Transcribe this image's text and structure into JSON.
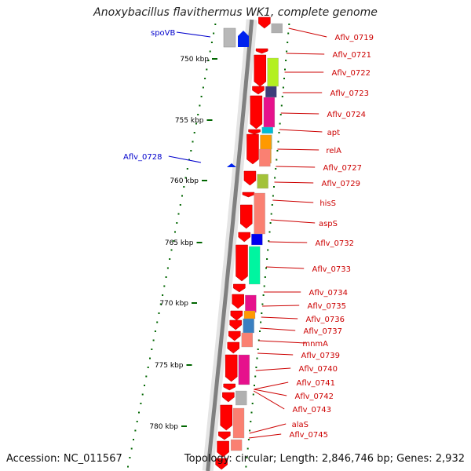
{
  "title": "Anoxybacillus flavithermus WK1, complete genome",
  "accession": "Accession: NC_011567",
  "topology": "Topology: circular; Length: 2,846,746 bp; Genes: 2,932",
  "colors": {
    "forward_label": "#cc0000",
    "reverse_label": "#0000cc",
    "backbone": "#808080",
    "tick": "#006600",
    "kbp_label": "#000000"
  },
  "scale_labels": [
    "750 kbp",
    "755 kbp",
    "760 kbp",
    "765 kbp",
    "770 kbp",
    "775 kbp",
    "780 kbp"
  ],
  "reverse_genes": [
    {
      "name": "spoVB"
    },
    {
      "name": "Aflv_0728"
    }
  ],
  "forward_genes": [
    {
      "name": "Aflv_0719"
    },
    {
      "name": "Aflv_0721"
    },
    {
      "name": "Aflv_0722"
    },
    {
      "name": "Aflv_0723"
    },
    {
      "name": "Aflv_0724"
    },
    {
      "name": "apt"
    },
    {
      "name": "relA"
    },
    {
      "name": "Aflv_0727"
    },
    {
      "name": "Aflv_0729"
    },
    {
      "name": "hisS"
    },
    {
      "name": "aspS"
    },
    {
      "name": "Aflv_0732"
    },
    {
      "name": "Aflv_0733"
    },
    {
      "name": "Aflv_0734"
    },
    {
      "name": "Aflv_0735"
    },
    {
      "name": "Aflv_0736"
    },
    {
      "name": "Aflv_0737"
    },
    {
      "name": "mnmA"
    },
    {
      "name": "Aflv_0739"
    },
    {
      "name": "Aflv_0740"
    },
    {
      "name": "Aflv_0741"
    },
    {
      "name": "Aflv_0742"
    },
    {
      "name": "Aflv_0743"
    },
    {
      "name": "alaS"
    },
    {
      "name": "Aflv_0745"
    }
  ],
  "function_colors": [
    "#909090",
    "#b3f022",
    "#3d3d7a",
    "#e6118c",
    "#00bcd4",
    "#ff9900",
    "#a3c23a",
    "#fa8072",
    "#0000ee",
    "#00f5a0",
    "#3a7fc1",
    "#808080",
    "#b0b0b0"
  ]
}
